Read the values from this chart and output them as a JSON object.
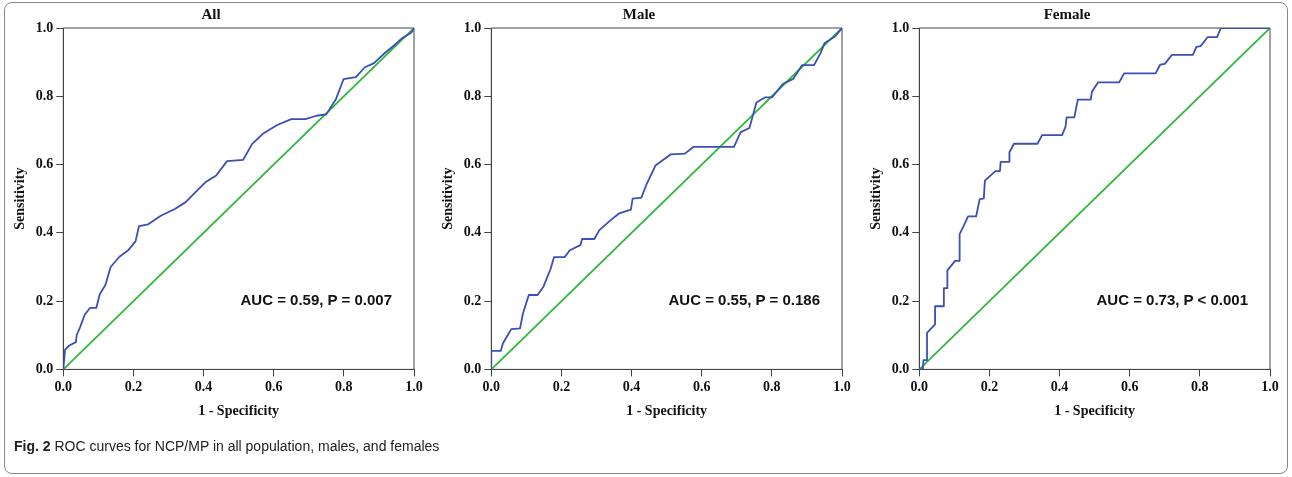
{
  "chart_data": [
    {
      "type": "line",
      "title": "All",
      "xlabel": "1 - Specificity",
      "ylabel": "Sensitivity",
      "xlim": [
        0,
        1
      ],
      "ylim": [
        0,
        1
      ],
      "xticks": [
        {
          "value": 0,
          "label": "0.0"
        },
        {
          "value": 0.2,
          "label": "0.2"
        },
        {
          "value": 0.4,
          "label": "0.4"
        },
        {
          "value": 0.6,
          "label": "0.6"
        },
        {
          "value": 0.8,
          "label": "0.8"
        },
        {
          "value": 1,
          "label": "1.0"
        }
      ],
      "yticks": [
        {
          "value": 0,
          "label": "0.0"
        },
        {
          "value": 0.2,
          "label": "0.2"
        },
        {
          "value": 0.4,
          "label": "0.4"
        },
        {
          "value": 0.6,
          "label": "0.6"
        },
        {
          "value": 0.8,
          "label": "0.8"
        },
        {
          "value": 1,
          "label": "1.0"
        }
      ],
      "grid": false,
      "legend": false,
      "marker": "none",
      "series": [
        {
          "color": "#3b4fb5",
          "x": [
            0,
            0.005,
            0.017,
            0.036,
            0.038,
            0.048,
            0.061,
            0.076,
            0.094,
            0.104,
            0.12,
            0.135,
            0.16,
            0.186,
            0.206,
            0.216,
            0.242,
            0.278,
            0.318,
            0.349,
            0.375,
            0.405,
            0.436,
            0.467,
            0.513,
            0.538,
            0.569,
            0.61,
            0.65,
            0.69,
            0.722,
            0.75,
            0.778,
            0.799,
            0.834,
            0.86,
            0.886,
            0.916,
            0.942,
            0.967,
            0.993,
            1
          ],
          "values": [
            0,
            0.058,
            0.07,
            0.08,
            0.1,
            0.124,
            0.16,
            0.18,
            0.18,
            0.22,
            0.247,
            0.3,
            0.33,
            0.35,
            0.375,
            0.42,
            0.425,
            0.45,
            0.47,
            0.49,
            0.517,
            0.548,
            0.568,
            0.61,
            0.614,
            0.66,
            0.69,
            0.716,
            0.733,
            0.733,
            0.743,
            0.747,
            0.793,
            0.85,
            0.856,
            0.885,
            0.897,
            0.926,
            0.948,
            0.971,
            0.987,
            1
          ]
        },
        {
          "color": "#2fb83a",
          "x": [
            0,
            1
          ],
          "values": [
            0,
            1
          ]
        }
      ],
      "annotations": [
        "AUC = 0.59, P = 0.007",
        "Fig. 2 ROC curves for NCP/MP in all population, males, and females"
      ]
    },
    {
      "type": "line",
      "title": "Male",
      "xlabel": "1 - Specificity",
      "ylabel": "Sensitivity",
      "xlim": [
        0,
        1
      ],
      "ylim": [
        0,
        1
      ],
      "xticks": [
        {
          "value": 0,
          "label": "0.0"
        },
        {
          "value": 0.2,
          "label": "0.2"
        },
        {
          "value": 0.4,
          "label": "0.4"
        },
        {
          "value": 0.6,
          "label": "0.6"
        },
        {
          "value": 0.8,
          "label": "0.8"
        },
        {
          "value": 1,
          "label": "1.0"
        }
      ],
      "yticks": [
        {
          "value": 0,
          "label": "0.0"
        },
        {
          "value": 0.2,
          "label": "0.2"
        },
        {
          "value": 0.4,
          "label": "0.4"
        },
        {
          "value": 0.6,
          "label": "0.6"
        },
        {
          "value": 0.8,
          "label": "0.8"
        },
        {
          "value": 1,
          "label": "1.0"
        }
      ],
      "grid": false,
      "legend": false,
      "marker": "none",
      "series": [
        {
          "color": "#3b4fb5",
          "x": [
            0,
            0,
            0.027,
            0.033,
            0.045,
            0.057,
            0.082,
            0.09,
            0.107,
            0.132,
            0.149,
            0.169,
            0.179,
            0.209,
            0.224,
            0.254,
            0.259,
            0.294,
            0.308,
            0.338,
            0.363,
            0.398,
            0.403,
            0.428,
            0.443,
            0.468,
            0.512,
            0.552,
            0.577,
            0.692,
            0.711,
            0.736,
            0.756,
            0.781,
            0.801,
            0.831,
            0.861,
            0.886,
            0.92,
            0.938,
            0.95,
            0.98,
            1
          ],
          "values": [
            0,
            0.054,
            0.054,
            0.076,
            0.097,
            0.118,
            0.12,
            0.163,
            0.218,
            0.218,
            0.243,
            0.294,
            0.329,
            0.329,
            0.349,
            0.364,
            0.382,
            0.382,
            0.408,
            0.435,
            0.456,
            0.468,
            0.5,
            0.503,
            0.543,
            0.597,
            0.63,
            0.632,
            0.652,
            0.652,
            0.695,
            0.707,
            0.782,
            0.797,
            0.797,
            0.836,
            0.851,
            0.891,
            0.891,
            0.925,
            0.955,
            0.975,
            1
          ]
        },
        {
          "color": "#2fb83a",
          "x": [
            0,
            1
          ],
          "values": [
            0,
            1
          ]
        }
      ],
      "annotations": [
        "AUC = 0.55, P = 0.186"
      ]
    },
    {
      "type": "line",
      "title": "Female",
      "xlabel": "1 - Specificity",
      "ylabel": "Sensitivity",
      "xlim": [
        0,
        1
      ],
      "ylim": [
        0,
        1
      ],
      "xticks": [
        {
          "value": 0,
          "label": "0.0"
        },
        {
          "value": 0.2,
          "label": "0.2"
        },
        {
          "value": 0.4,
          "label": "0.4"
        },
        {
          "value": 0.6,
          "label": "0.6"
        },
        {
          "value": 0.8,
          "label": "0.8"
        },
        {
          "value": 1,
          "label": "1.0"
        }
      ],
      "yticks": [
        {
          "value": 0,
          "label": "0.0"
        },
        {
          "value": 0.2,
          "label": "0.2"
        },
        {
          "value": 0.4,
          "label": "0.4"
        },
        {
          "value": 0.6,
          "label": "0.6"
        },
        {
          "value": 0.8,
          "label": "0.8"
        },
        {
          "value": 1,
          "label": "1.0"
        }
      ],
      "grid": false,
      "legend": false,
      "marker": "none",
      "series": [
        {
          "color": "#3b4fb5",
          "x": [
            0,
            0.01,
            0.012,
            0.022,
            0.022,
            0.045,
            0.045,
            0.07,
            0.07,
            0.08,
            0.08,
            0.102,
            0.115,
            0.115,
            0.127,
            0.139,
            0.162,
            0.172,
            0.184,
            0.187,
            0.217,
            0.23,
            0.232,
            0.257,
            0.257,
            0.27,
            0.337,
            0.35,
            0.407,
            0.417,
            0.42,
            0.442,
            0.452,
            0.489,
            0.492,
            0.51,
            0.57,
            0.584,
            0.674,
            0.687,
            0.7,
            0.72,
            0.78,
            0.79,
            0.802,
            0.822,
            0.849,
            0.86,
            1
          ],
          "values": [
            0,
            0,
            0.027,
            0.027,
            0.107,
            0.132,
            0.185,
            0.185,
            0.238,
            0.238,
            0.29,
            0.318,
            0.318,
            0.396,
            0.421,
            0.448,
            0.448,
            0.498,
            0.501,
            0.553,
            0.581,
            0.581,
            0.608,
            0.608,
            0.636,
            0.661,
            0.661,
            0.686,
            0.686,
            0.711,
            0.738,
            0.738,
            0.79,
            0.79,
            0.813,
            0.841,
            0.841,
            0.867,
            0.867,
            0.893,
            0.895,
            0.921,
            0.921,
            0.945,
            0.947,
            0.973,
            0.973,
            1,
            1
          ]
        },
        {
          "color": "#2fb83a",
          "x": [
            0,
            1
          ],
          "values": [
            0,
            1
          ]
        }
      ],
      "annotations": [
        "AUC = 0.73, P < 0.001"
      ]
    }
  ]
}
